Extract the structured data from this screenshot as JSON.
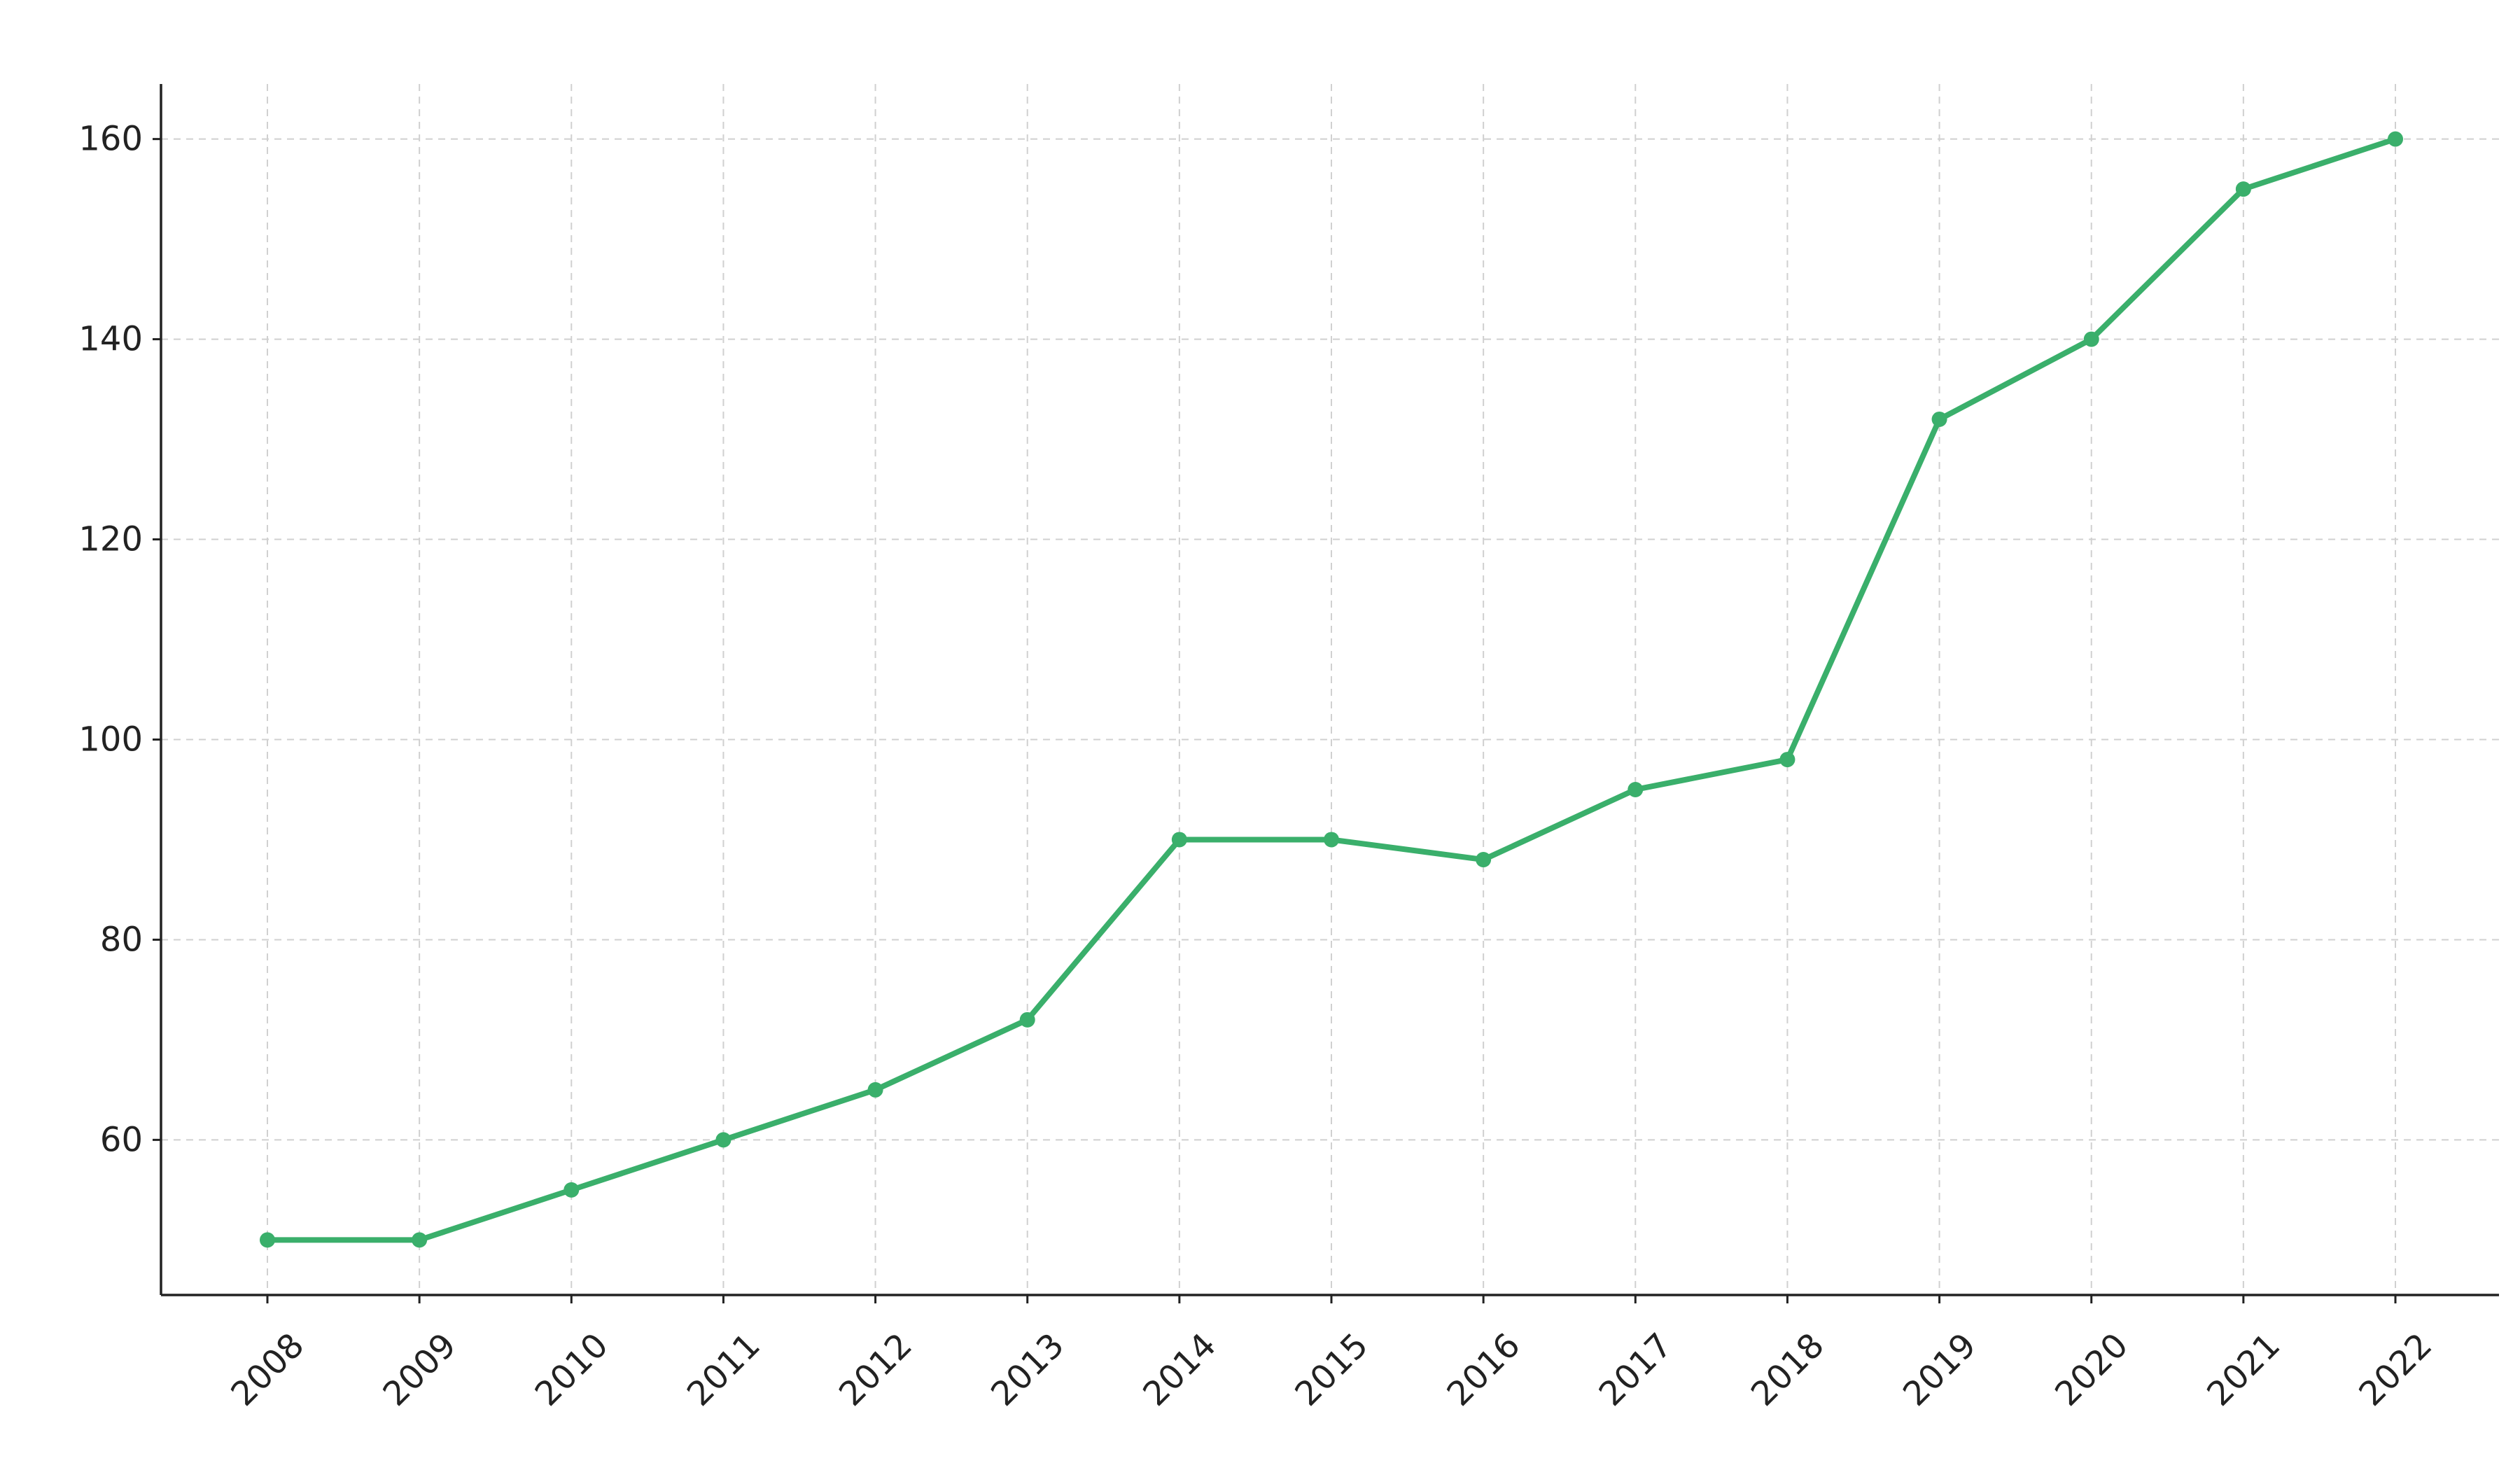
{
  "chart_data": {
    "type": "line",
    "title": "",
    "xlabel": "",
    "ylabel": "",
    "x": [
      "2008",
      "2009",
      "2010",
      "2011",
      "2012",
      "2013",
      "2014",
      "2015",
      "2016",
      "2017",
      "2018",
      "2019",
      "2020",
      "2021",
      "2022"
    ],
    "series": [
      {
        "values": [
          50,
          50,
          55,
          60,
          65,
          72,
          90,
          90,
          88,
          95,
          98,
          132,
          140,
          155,
          160
        ],
        "color": "#3aaf6b"
      }
    ],
    "yticks": [
      60,
      80,
      100,
      120,
      140,
      160
    ],
    "ylim": [
      44.5,
      165.5
    ],
    "grid": true,
    "legend": "none",
    "markers": "circle",
    "x_tick_rotation": "45 degrees"
  }
}
